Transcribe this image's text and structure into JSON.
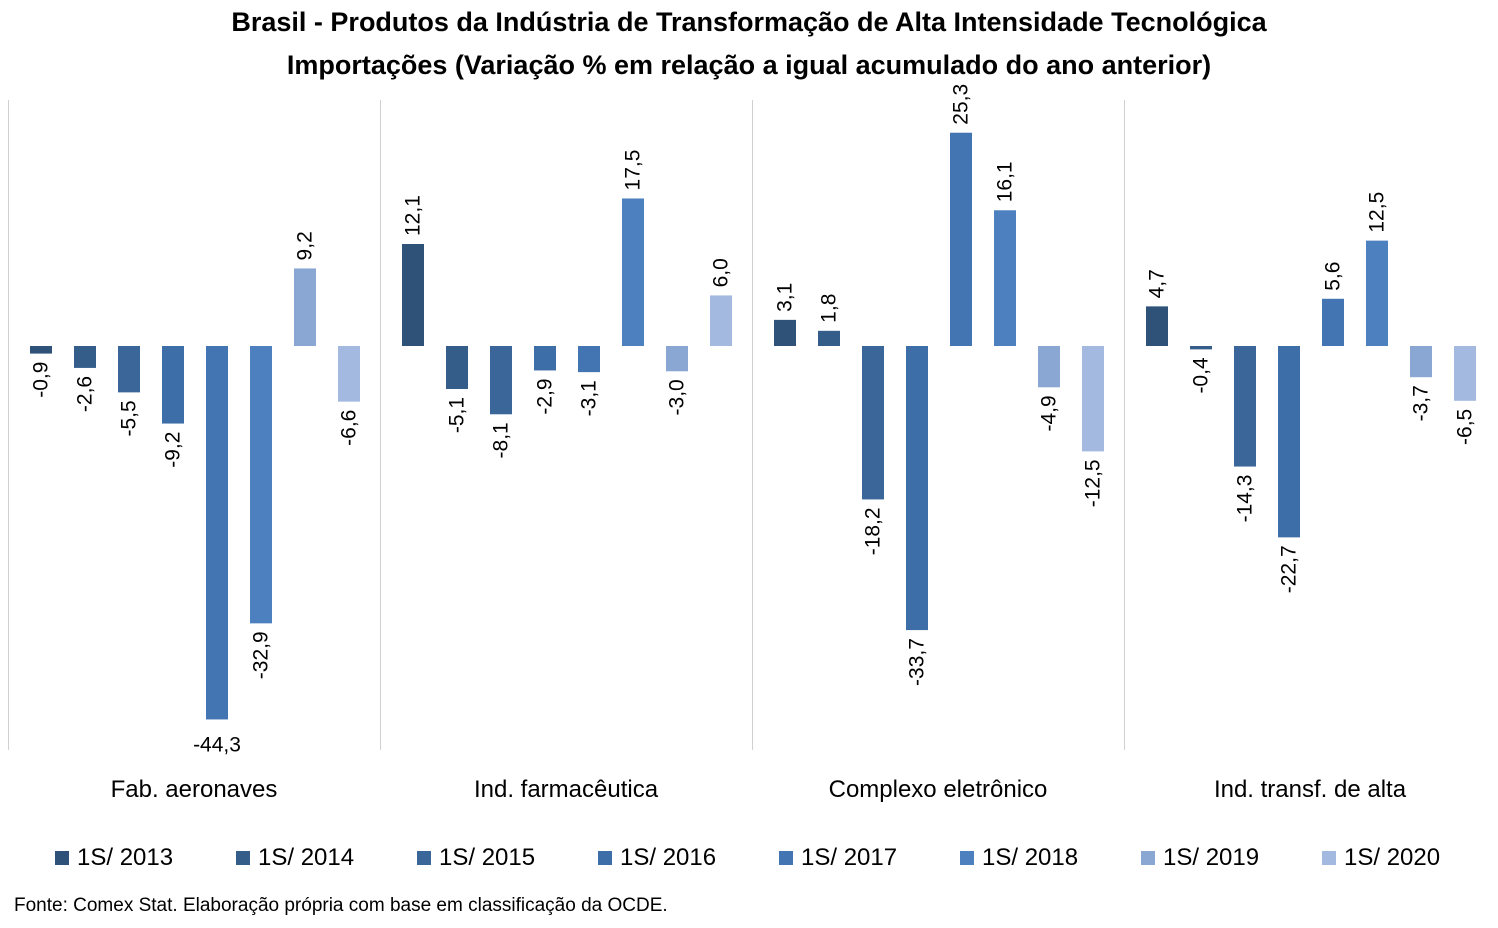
{
  "chart_data": {
    "type": "bar",
    "title": "Brasil - Produtos da Indústria de Transformação de Alta Intensidade Tecnológica",
    "subtitle": "Importações (Variação % em relação a igual acumulado do ano anterior)",
    "categories": [
      "Fab. aeronaves",
      "Ind. farmacêutica",
      "Complexo eletrônico",
      "Ind. transf. de alta"
    ],
    "series": [
      {
        "name": "1S/ 2013",
        "color": "#2f5279",
        "values": [
          -0.9,
          12.1,
          3.1,
          4.7
        ],
        "labels": [
          "-0,9",
          "12,1",
          "3,1",
          "4,7"
        ]
      },
      {
        "name": "1S/ 2014",
        "color": "#355d8a",
        "values": [
          -2.6,
          -5.1,
          1.8,
          -0.4
        ],
        "labels": [
          "-2,6",
          "-5,1",
          "1,8",
          "-0,4"
        ]
      },
      {
        "name": "1S/ 2015",
        "color": "#3a6699",
        "values": [
          -5.5,
          -8.1,
          -18.2,
          -14.3
        ],
        "labels": [
          "-5,5",
          "-8,1",
          "-18,2",
          "-14,3"
        ]
      },
      {
        "name": "1S/ 2016",
        "color": "#3e6ea7",
        "values": [
          -9.2,
          -2.9,
          -33.7,
          -22.7
        ],
        "labels": [
          "-9,2",
          "-2,9",
          "-33,7",
          "-22,7"
        ]
      },
      {
        "name": "1S/ 2017",
        "color": "#4375b2",
        "values": [
          -44.3,
          -3.1,
          25.3,
          5.6
        ],
        "labels": [
          "-44,3",
          "-3,1",
          "25,3",
          "5,6"
        ]
      },
      {
        "name": "1S/ 2018",
        "color": "#4d80bf",
        "values": [
          -32.9,
          17.5,
          16.1,
          12.5
        ],
        "labels": [
          "-32,9",
          "17,5",
          "16,1",
          "12,5"
        ]
      },
      {
        "name": "1S/ 2019",
        "color": "#8aa6d2",
        "values": [
          9.2,
          -3.0,
          -4.9,
          -3.7
        ],
        "labels": [
          "9,2",
          "-3,0",
          "-4,9",
          "-3,7"
        ]
      },
      {
        "name": "1S/ 2020",
        "color": "#a3b9e0",
        "values": [
          -6.6,
          6.0,
          -12.5,
          -6.5
        ],
        "labels": [
          "-6,6",
          "6,0",
          "-12,5",
          "-6,5"
        ]
      }
    ],
    "ylim": [
      -48,
      30
    ],
    "grid": false,
    "legend": "bottom"
  },
  "footer": {
    "source": "Fonte: Comex Stat. Elaboração própria com base em classificação da OCDE."
  }
}
